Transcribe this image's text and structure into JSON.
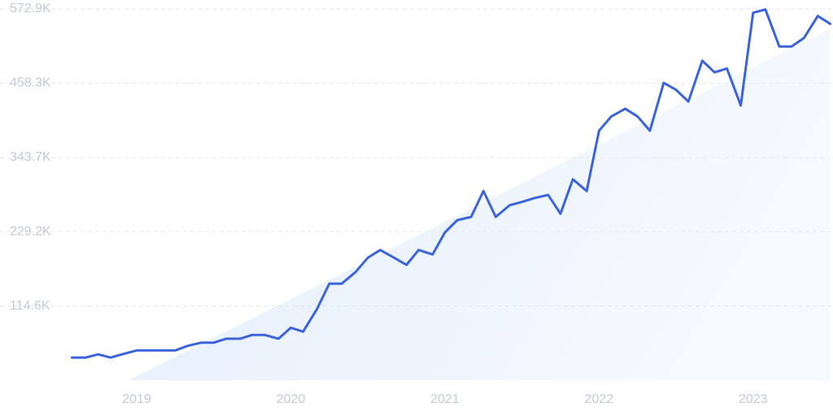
{
  "chart_data": {
    "type": "line",
    "x": [
      2018.58,
      2018.67,
      2018.75,
      2018.83,
      2018.92,
      2019.0,
      2019.08,
      2019.17,
      2019.25,
      2019.33,
      2019.42,
      2019.5,
      2019.58,
      2019.67,
      2019.75,
      2019.83,
      2019.92,
      2020.0,
      2020.08,
      2020.17,
      2020.25,
      2020.33,
      2020.42,
      2020.5,
      2020.58,
      2020.67,
      2020.75,
      2020.83,
      2020.92,
      2021.0,
      2021.08,
      2021.17,
      2021.25,
      2021.33,
      2021.42,
      2021.5,
      2021.58,
      2021.67,
      2021.75,
      2021.83,
      2021.92,
      2022.0,
      2022.08,
      2022.17,
      2022.25,
      2022.33,
      2022.42,
      2022.5,
      2022.58,
      2022.67,
      2022.75,
      2022.83,
      2022.92,
      2023.0,
      2023.08,
      2023.17,
      2023.25,
      2023.33,
      2023.42,
      2023.5
    ],
    "series": [
      {
        "color": "#3b63dc",
        "values": [
          35000,
          35000,
          40000,
          35000,
          41000,
          46000,
          46000,
          46000,
          46000,
          53000,
          58000,
          58000,
          64000,
          64000,
          70000,
          70000,
          64000,
          81000,
          75000,
          110000,
          149000,
          149000,
          167000,
          189000,
          201000,
          189000,
          178000,
          201000,
          194000,
          228000,
          247000,
          252000,
          292000,
          252000,
          270000,
          275000,
          281000,
          286000,
          257000,
          310000,
          292000,
          385000,
          407000,
          419000,
          407000,
          385000,
          459000,
          448000,
          430000,
          493000,
          475000,
          481000,
          424000,
          567000,
          572000,
          515000,
          515000,
          528000,
          562000,
          550000
        ]
      }
    ],
    "xlim": [
      2018.58,
      2023.5
    ],
    "xticks": [
      2019,
      2020,
      2021,
      2022,
      2023
    ],
    "ylim": [
      0,
      572900
    ],
    "yticks": [
      {
        "value": 114600,
        "label": "114.6K"
      },
      {
        "value": 229200,
        "label": "229.2K"
      },
      {
        "value": 343700,
        "label": "343.7K"
      },
      {
        "value": 458300,
        "label": "458.3K"
      },
      {
        "value": 572900,
        "label": "572.9K"
      }
    ],
    "grid": true
  }
}
